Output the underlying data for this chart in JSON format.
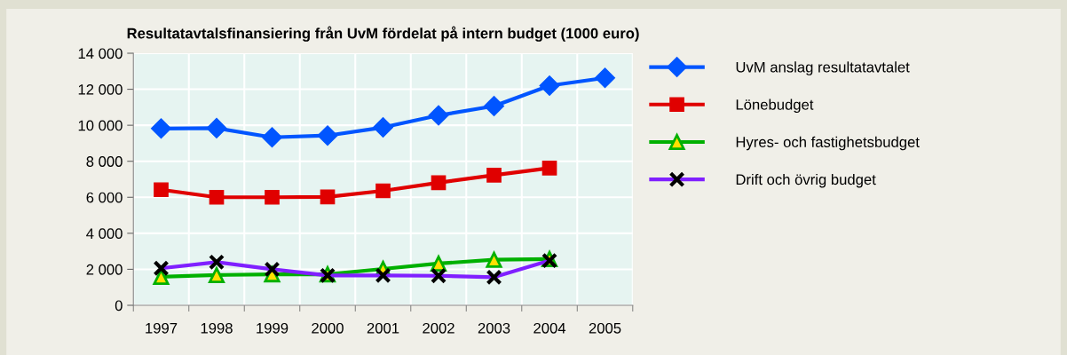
{
  "chart_data": {
    "type": "line",
    "title": "Resultatavtalsfinansiering från UvM fördelat på intern budget (1000 euro)",
    "categories": [
      "1997",
      "1998",
      "1999",
      "2000",
      "2001",
      "2002",
      "2003",
      "2004",
      "2005"
    ],
    "series": [
      {
        "name": "UvM anslag resultatavtalet",
        "color": "#0055ff",
        "marker": "diamond",
        "values": [
          9820,
          9840,
          9330,
          9430,
          9880,
          10550,
          11070,
          12200,
          12630
        ]
      },
      {
        "name": "Lönebudget",
        "color": "#e00000",
        "marker": "square",
        "values": [
          6420,
          6000,
          6000,
          6020,
          6360,
          6810,
          7230,
          7620,
          null
        ]
      },
      {
        "name": "Hyres- och fastighetsbudget",
        "color": "#00b000",
        "marker": "triangle",
        "values": [
          1580,
          1680,
          1720,
          1720,
          2020,
          2320,
          2530,
          2570,
          null
        ]
      },
      {
        "name": "Drift och övrig budget",
        "color": "#8020ff",
        "marker": "cross",
        "values": [
          2060,
          2400,
          2000,
          1660,
          1660,
          1640,
          1560,
          2480,
          null
        ]
      }
    ],
    "ylim": [
      0,
      14000
    ],
    "yticks": [
      {
        "value": 0,
        "label": "0"
      },
      {
        "value": 2000,
        "label": "2 000"
      },
      {
        "value": 4000,
        "label": "4 000"
      },
      {
        "value": 6000,
        "label": "6 000"
      },
      {
        "value": 8000,
        "label": "8 000"
      },
      {
        "value": 10000,
        "label": "10 000"
      },
      {
        "value": 12000,
        "label": "12 000"
      },
      {
        "value": 14000,
        "label": "14 000"
      }
    ],
    "grid": true,
    "legend": "right"
  }
}
